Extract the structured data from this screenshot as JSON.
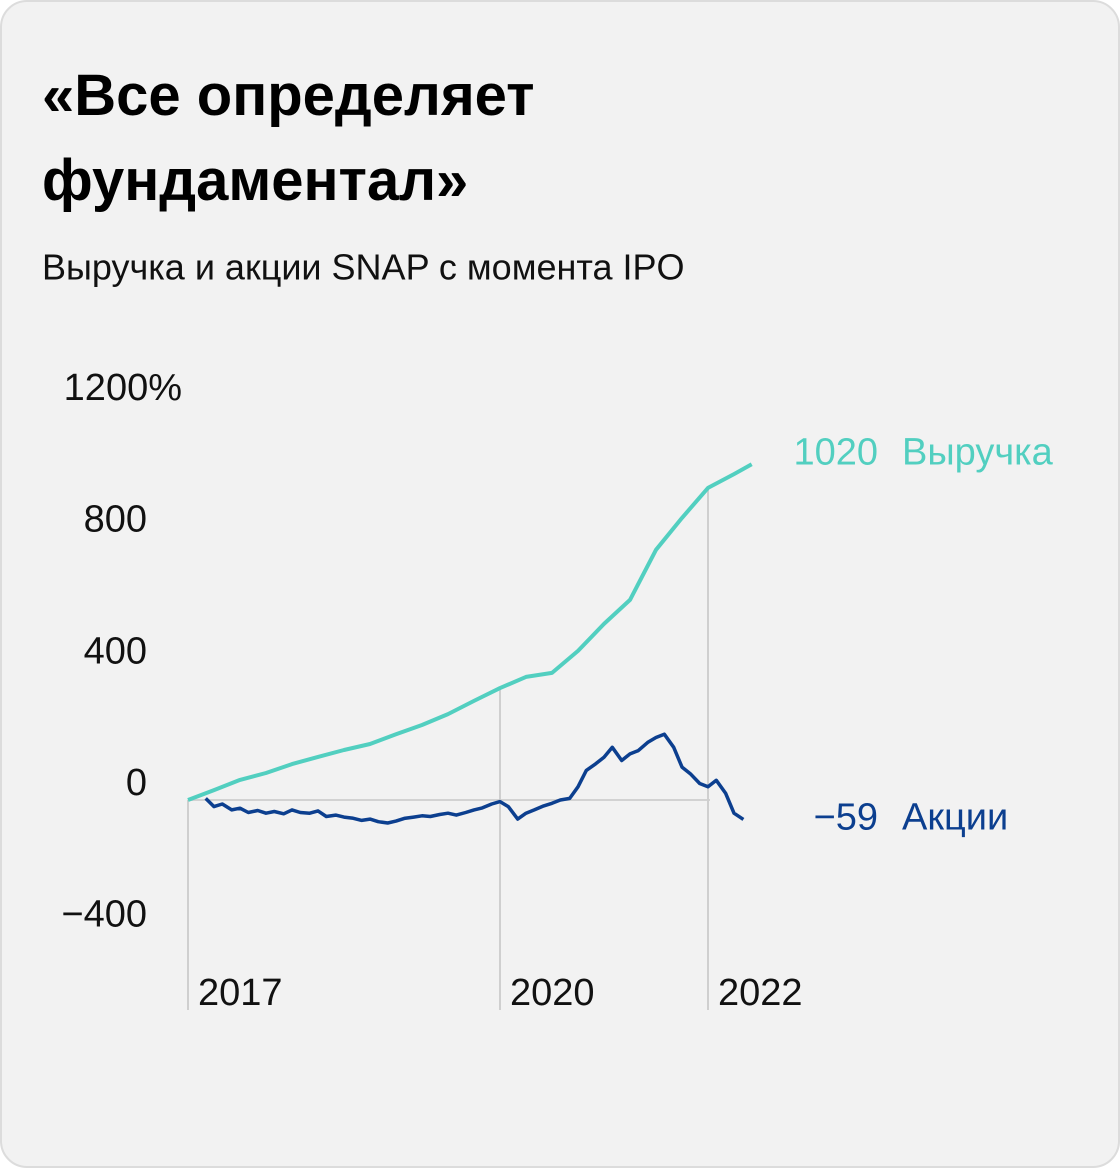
{
  "chart_data": {
    "type": "line",
    "title": "«Все определяет фундаментал»",
    "subtitle": "Выручка и акции SNAP с момента IPO",
    "ylim": [
      -640,
      1200
    ],
    "yticks": [
      {
        "value": 1200,
        "label": "1200%"
      },
      800,
      400,
      0,
      {
        "value": -400,
        "label": "−400"
      }
    ],
    "xlim": [
      2017,
      2022.5
    ],
    "xticks": [
      2017,
      2020,
      2022
    ],
    "series": [
      {
        "name": "Выручка",
        "color": "#52cfc0",
        "x": [
          2017,
          2017.25,
          2017.5,
          2017.75,
          2018,
          2018.25,
          2018.5,
          2018.75,
          2019,
          2019.25,
          2019.5,
          2019.75,
          2020,
          2020.25,
          2020.5,
          2020.75,
          2021,
          2021.25,
          2021.5,
          2021.75,
          2022,
          2022.25,
          2022.42
        ],
        "values": [
          0,
          30,
          61,
          82,
          109,
          131,
          152,
          170,
          200,
          228,
          261,
          301,
          340,
          374,
          386,
          453,
          535,
          608,
          760,
          857,
          948,
          990,
          1020
        ]
      },
      {
        "name": "Акции",
        "color": "#0c3f8f",
        "x": [
          2017.17,
          2017.25,
          2017.33,
          2017.42,
          2017.5,
          2017.58,
          2017.67,
          2017.75,
          2017.83,
          2017.92,
          2018.0,
          2018.08,
          2018.17,
          2018.25,
          2018.33,
          2018.42,
          2018.5,
          2018.58,
          2018.67,
          2018.75,
          2018.83,
          2018.92,
          2019.0,
          2019.08,
          2019.17,
          2019.25,
          2019.33,
          2019.42,
          2019.5,
          2019.58,
          2019.67,
          2019.75,
          2019.83,
          2019.92,
          2020.0,
          2020.08,
          2020.17,
          2020.25,
          2020.33,
          2020.42,
          2020.5,
          2020.58,
          2020.67,
          2020.75,
          2020.83,
          2020.92,
          2021.0,
          2021.08,
          2021.17,
          2021.25,
          2021.33,
          2021.42,
          2021.5,
          2021.58,
          2021.67,
          2021.75,
          2021.83,
          2021.92,
          2022.0,
          2022.08,
          2022.17,
          2022.25,
          2022.34
        ],
        "values": [
          5,
          -20,
          -12,
          -30,
          -25,
          -38,
          -32,
          -40,
          -35,
          -42,
          -30,
          -38,
          -40,
          -33,
          -50,
          -46,
          -52,
          -55,
          -62,
          -58,
          -66,
          -70,
          -64,
          -56,
          -52,
          -48,
          -50,
          -44,
          -40,
          -46,
          -38,
          -30,
          -24,
          -12,
          -5,
          -20,
          -58,
          -40,
          -30,
          -18,
          -10,
          0,
          5,
          40,
          90,
          110,
          130,
          160,
          120,
          140,
          150,
          175,
          190,
          200,
          160,
          100,
          80,
          50,
          40,
          60,
          20,
          -40,
          -59
        ],
        "value_labels": [
          null,
          null,
          null,
          null,
          null,
          null,
          null,
          null,
          null,
          null,
          null,
          null,
          null,
          null,
          null,
          null,
          null,
          null,
          null,
          null,
          null,
          null,
          null,
          null,
          null,
          null,
          null,
          null,
          null,
          null,
          null,
          null,
          null,
          null,
          null,
          null,
          null,
          null,
          null,
          null,
          null,
          null,
          null,
          null,
          null,
          null,
          null,
          null,
          null,
          null,
          null,
          null,
          null,
          null,
          null,
          null,
          null,
          null,
          null,
          null,
          null,
          null,
          "−59"
        ]
      }
    ]
  }
}
